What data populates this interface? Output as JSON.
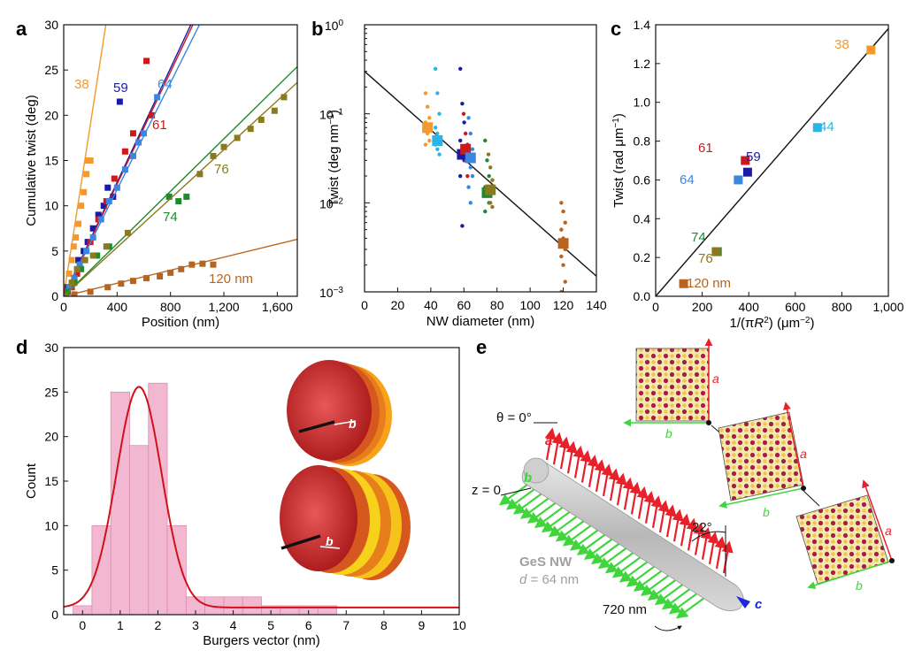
{
  "chart_data": [
    {
      "panel": "a",
      "type": "scatter",
      "xlabel": "Position (nm)",
      "ylabel": "Cumulative twist (deg)",
      "xlim": [
        0,
        1750
      ],
      "ylim": [
        0,
        30
      ],
      "xticks": [
        0,
        400,
        800,
        1200,
        1600
      ],
      "xtick_labels": [
        "0",
        "400",
        "800",
        "1,200",
        "1,600"
      ],
      "yticks": [
        0,
        5,
        10,
        15,
        20,
        25,
        30
      ],
      "series": [
        {
          "name": "38",
          "label": "38",
          "color": "#f29a2e",
          "slope": 0.095,
          "points": [
            [
              20,
              1
            ],
            [
              40,
              2.5
            ],
            [
              60,
              4
            ],
            [
              75,
              5.5
            ],
            [
              90,
              6.5
            ],
            [
              110,
              8
            ],
            [
              130,
              10
            ],
            [
              150,
              11.5
            ],
            [
              170,
              13.5
            ],
            [
              180,
              15
            ],
            [
              200,
              15
            ]
          ]
        },
        {
          "name": "59",
          "label": "59",
          "color": "#1a1aa8",
          "slope": 0.0315,
          "points": [
            [
              30,
              1
            ],
            [
              80,
              2
            ],
            [
              110,
              4
            ],
            [
              150,
              5
            ],
            [
              180,
              6
            ],
            [
              220,
              7.5
            ],
            [
              260,
              9
            ],
            [
              300,
              10
            ],
            [
              330,
              12
            ],
            [
              370,
              11
            ],
            [
              420,
              21.5
            ]
          ]
        },
        {
          "name": "61",
          "label": "61",
          "color": "#cc1a1a",
          "slope": 0.031,
          "points": [
            [
              20,
              0.5
            ],
            [
              60,
              1
            ],
            [
              100,
              2.5
            ],
            [
              150,
              4
            ],
            [
              200,
              6
            ],
            [
              260,
              8.5
            ],
            [
              320,
              10.5
            ],
            [
              380,
              13
            ],
            [
              460,
              16
            ],
            [
              520,
              18
            ],
            [
              620,
              26
            ],
            [
              660,
              20
            ]
          ]
        },
        {
          "name": "64",
          "label": "64",
          "color": "#3a86e0",
          "slope": 0.0295,
          "points": [
            [
              40,
              1
            ],
            [
              80,
              2
            ],
            [
              120,
              3.5
            ],
            [
              170,
              5
            ],
            [
              220,
              6.5
            ],
            [
              280,
              8.5
            ],
            [
              340,
              10.5
            ],
            [
              400,
              12
            ],
            [
              460,
              14
            ],
            [
              520,
              15.5
            ],
            [
              560,
              17
            ],
            [
              600,
              18
            ],
            [
              700,
              22
            ]
          ]
        },
        {
          "name": "74",
          "label": "74",
          "color": "#1e8a2e",
          "slope": 0.0145,
          "points": [
            [
              30,
              0.5
            ],
            [
              80,
              1.5
            ],
            [
              130,
              3
            ],
            [
              250,
              4.5
            ],
            [
              340,
              5.5
            ],
            [
              790,
              11
            ],
            [
              860,
              10.5
            ],
            [
              920,
              11
            ]
          ]
        },
        {
          "name": "76",
          "label": "76",
          "color": "#8a7a1e",
          "slope": 0.0135,
          "points": [
            [
              60,
              1.5
            ],
            [
              100,
              3
            ],
            [
              160,
              4
            ],
            [
              220,
              4.5
            ],
            [
              320,
              5.5
            ],
            [
              480,
              7
            ],
            [
              1020,
              13.5
            ],
            [
              1120,
              15.5
            ],
            [
              1200,
              16.5
            ],
            [
              1300,
              17.5
            ],
            [
              1400,
              18.5
            ],
            [
              1480,
              19.5
            ],
            [
              1580,
              20.5
            ],
            [
              1650,
              22
            ]
          ]
        },
        {
          "name": "120 nm",
          "label": "120 nm",
          "color": "#b8641e",
          "slope": 0.0036,
          "points": [
            [
              80,
              0.2
            ],
            [
              200,
              0.5
            ],
            [
              330,
              1
            ],
            [
              430,
              1.4
            ],
            [
              520,
              1.7
            ],
            [
              620,
              2
            ],
            [
              720,
              2.2
            ],
            [
              800,
              2.6
            ],
            [
              880,
              3
            ],
            [
              960,
              3.5
            ],
            [
              1040,
              3.6
            ],
            [
              1120,
              3.5
            ]
          ]
        }
      ]
    },
    {
      "panel": "b",
      "type": "scatter",
      "xlabel": "NW diameter (nm)",
      "ylabel_main": "Twist (deg nm",
      "ylabel_sup": "−1",
      "ylabel_tail": ")",
      "xlim": [
        0,
        140
      ],
      "yscale": "log",
      "ylim": [
        0.001,
        1
      ],
      "xticks": [
        0,
        20,
        40,
        60,
        80,
        100,
        120,
        140
      ],
      "yticks": [
        0.001,
        0.01,
        0.1,
        1
      ],
      "ytick_bases": [
        "10",
        "10",
        "10",
        "10"
      ],
      "ytick_exps": [
        "−3",
        "−2",
        "−1",
        "0"
      ],
      "fit_line": [
        [
          0,
          0.3
        ],
        [
          140,
          0.0015
        ]
      ],
      "means": [
        {
          "x": 38,
          "y": 0.07,
          "color": "#f29a2e"
        },
        {
          "x": 44,
          "y": 0.05,
          "color": "#29b6e6"
        },
        {
          "x": 59,
          "y": 0.035,
          "color": "#1a1aa8"
        },
        {
          "x": 61,
          "y": 0.04,
          "color": "#cc1a1a"
        },
        {
          "x": 64,
          "y": 0.032,
          "color": "#3a86e0"
        },
        {
          "x": 74,
          "y": 0.013,
          "color": "#1e8a2e"
        },
        {
          "x": 76,
          "y": 0.014,
          "color": "#8a7a1e"
        },
        {
          "x": 120,
          "y": 0.0035,
          "color": "#b8641e"
        }
      ],
      "raw": [
        {
          "x": 38,
          "color": "#f29a2e",
          "ys": [
            0.17,
            0.12,
            0.09,
            0.08,
            0.06,
            0.05,
            0.045
          ]
        },
        {
          "x": 44,
          "color": "#29b6e6",
          "ys": [
            0.32,
            0.17,
            0.1,
            0.07,
            0.06,
            0.05,
            0.045,
            0.04,
            0.035
          ]
        },
        {
          "x": 59,
          "color": "#1a1aa8",
          "ys": [
            0.32,
            0.13,
            0.08,
            0.05,
            0.04,
            0.03,
            0.02,
            0.0055
          ]
        },
        {
          "x": 61,
          "color": "#cc1a1a",
          "ys": [
            0.1,
            0.06,
            0.045,
            0.035,
            0.03,
            0.02
          ]
        },
        {
          "x": 64,
          "color": "#3a86e0",
          "ys": [
            0.09,
            0.06,
            0.04,
            0.03,
            0.025,
            0.02,
            0.015,
            0.01
          ]
        },
        {
          "x": 74,
          "color": "#1e8a2e",
          "ys": [
            0.05,
            0.03,
            0.02,
            0.015,
            0.012,
            0.01,
            0.008
          ]
        },
        {
          "x": 76,
          "color": "#8a7a1e",
          "ys": [
            0.035,
            0.025,
            0.018,
            0.012,
            0.01,
            0.009
          ]
        },
        {
          "x": 120,
          "color": "#b8641e",
          "ys": [
            0.01,
            0.008,
            0.006,
            0.005,
            0.004,
            0.003,
            0.0025,
            0.002,
            0.0013,
            0.001
          ]
        }
      ]
    },
    {
      "panel": "c",
      "type": "scatter",
      "xlabel_main": "1/(πR",
      "xlabel_sup1": "2",
      "xlabel_mid": ") (μm",
      "xlabel_sup2": "−2",
      "xlabel_tail": ")",
      "ylabel_main": "Twist (rad μm",
      "ylabel_sup": "−1",
      "ylabel_tail": ")",
      "xlim": [
        0,
        1000
      ],
      "ylim": [
        0,
        1.4
      ],
      "xticks": [
        0,
        200,
        400,
        600,
        800,
        1000
      ],
      "xtick_labels": [
        "0",
        "200",
        "400",
        "600",
        "800",
        "1,000"
      ],
      "yticks": [
        0,
        0.2,
        0.4,
        0.6,
        0.8,
        1.0,
        1.2,
        1.4
      ],
      "ytick_labels": [
        "0.0",
        "0.2",
        "0.4",
        "0.6",
        "0.8",
        "1.0",
        "1.2",
        "1.4"
      ],
      "fit_line": [
        [
          0,
          0
        ],
        [
          1000,
          1.38
        ]
      ],
      "points": [
        {
          "label": "38",
          "x": 925,
          "y": 1.27,
          "color": "#f29a2e"
        },
        {
          "label": "44",
          "x": 695,
          "y": 0.87,
          "color": "#29b6e6"
        },
        {
          "label": "61",
          "x": 385,
          "y": 0.7,
          "color": "#cc1a1a"
        },
        {
          "label": "59",
          "x": 395,
          "y": 0.64,
          "color": "#1a1aa8"
        },
        {
          "label": "64",
          "x": 355,
          "y": 0.6,
          "color": "#3a86e0"
        },
        {
          "label": "74",
          "x": 265,
          "y": 0.23,
          "color": "#1e8a2e"
        },
        {
          "label": "76",
          "x": 260,
          "y": 0.23,
          "color": "#8a7a1e"
        },
        {
          "label": "120 nm",
          "x": 120,
          "y": 0.065,
          "color": "#b8641e"
        }
      ]
    },
    {
      "panel": "d",
      "type": "bar",
      "xlabel": "Burgers vector (nm)",
      "ylabel": "Count",
      "xlim": [
        -0.5,
        10
      ],
      "ylim": [
        0,
        30
      ],
      "xticks": [
        0,
        1,
        2,
        3,
        4,
        5,
        6,
        7,
        8,
        9,
        10
      ],
      "yticks": [
        0,
        5,
        10,
        15,
        20,
        25,
        30
      ],
      "bin_width": 0.5,
      "bin_starts": [
        -0.25,
        0.25,
        0.75,
        1.25,
        1.75,
        2.25,
        2.75,
        3.25,
        3.75,
        4.25,
        4.75,
        5.25,
        5.75,
        6.25
      ],
      "counts": [
        1,
        10,
        25,
        19,
        26,
        10,
        2,
        2,
        2,
        2,
        1,
        1,
        1,
        1
      ],
      "fit": {
        "type": "gaussian",
        "mean": 1.5,
        "sigma": 0.6,
        "amplitude": 24.8,
        "baseline": 0.8
      },
      "inset_labels": [
        "b",
        "b"
      ]
    }
  ],
  "panels": {
    "a": "a",
    "b": "b",
    "c": "c",
    "d": "d",
    "e": "e"
  },
  "diagram_e": {
    "theta_label": "θ = 0°",
    "z_label": "z = 0",
    "angle_label": "22°",
    "nw_name": "GeS NW",
    "nw_d_prefix": "d",
    "nw_d_value": "= 64 nm",
    "pitch_label": "720 nm",
    "axis_a": "a",
    "axis_b": "b",
    "axis_c": "c",
    "cell_labels_a": [
      "a",
      "a",
      "a"
    ],
    "cell_labels_b": [
      "b",
      "b",
      "b"
    ],
    "colors": {
      "red": "#e8202a",
      "green": "#3ed63a",
      "blue": "#1a2ad8",
      "crystal_dark": "#a81e3a",
      "crystal_light": "#f2d24a"
    }
  }
}
